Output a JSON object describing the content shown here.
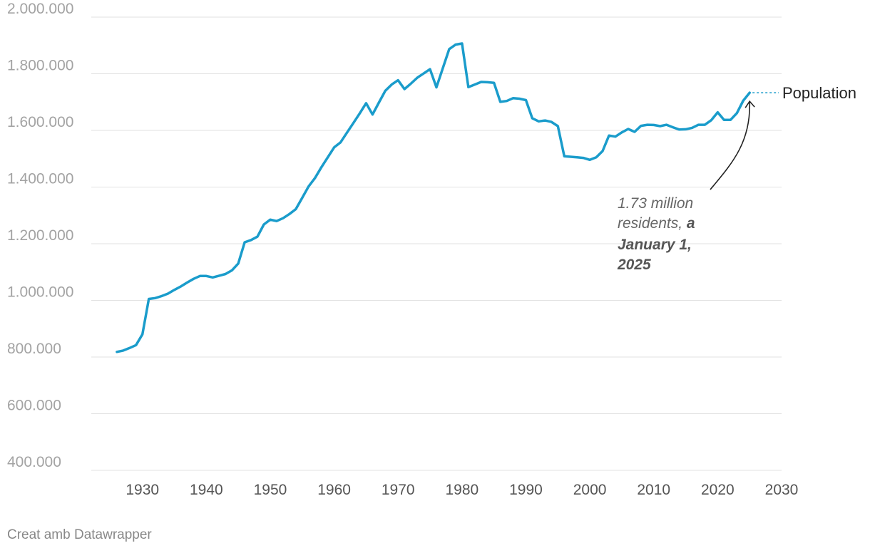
{
  "chart_data": {
    "type": "line",
    "ylim": [
      400000,
      2000000
    ],
    "xlim": [
      1922,
      2030
    ],
    "y_ticks": [
      "2.000.000",
      "1.800.000",
      "1.600.000",
      "1.400.000",
      "1.200.000",
      "1.000.000",
      "800.000",
      "600.000",
      "400.000"
    ],
    "y_tick_values": [
      2000000,
      1800000,
      1600000,
      1400000,
      1200000,
      1000000,
      800000,
      600000,
      400000
    ],
    "x_ticks": [
      "1930",
      "1940",
      "1950",
      "1960",
      "1970",
      "1980",
      "1990",
      "2000",
      "2010",
      "2020",
      "2030"
    ],
    "x_tick_values": [
      1930,
      1940,
      1950,
      1960,
      1970,
      1980,
      1990,
      2000,
      2010,
      2020,
      2030
    ],
    "grid": true,
    "line_color": "#1a9ccb",
    "series": [
      {
        "name": "Population",
        "x": [
          1926,
          1927,
          1928,
          1929,
          1930,
          1931,
          1932,
          1933,
          1934,
          1935,
          1936,
          1937,
          1938,
          1939,
          1940,
          1941,
          1942,
          1943,
          1944,
          1945,
          1946,
          1947,
          1948,
          1949,
          1950,
          1951,
          1952,
          1953,
          1954,
          1955,
          1956,
          1957,
          1958,
          1959,
          1960,
          1961,
          1962,
          1963,
          1964,
          1965,
          1966,
          1967,
          1968,
          1969,
          1970,
          1971,
          1972,
          1973,
          1974,
          1975,
          1976,
          1977,
          1978,
          1979,
          1980,
          1981,
          1982,
          1983,
          1984,
          1985,
          1986,
          1987,
          1988,
          1989,
          1990,
          1991,
          1992,
          1993,
          1994,
          1995,
          1996,
          1997,
          1998,
          1999,
          2000,
          2001,
          2002,
          2003,
          2004,
          2005,
          2006,
          2007,
          2008,
          2009,
          2010,
          2011,
          2012,
          2013,
          2014,
          2015,
          2016,
          2017,
          2018,
          2019,
          2020,
          2021,
          2022,
          2023,
          2024,
          2025
        ],
        "values": [
          818000,
          823000,
          832000,
          842000,
          880000,
          1005000,
          1008000,
          1015000,
          1024000,
          1037000,
          1049000,
          1063000,
          1076000,
          1086000,
          1086000,
          1081000,
          1087000,
          1093000,
          1106000,
          1130000,
          1205000,
          1213000,
          1225000,
          1268000,
          1285000,
          1280000,
          1290000,
          1305000,
          1322000,
          1362000,
          1402000,
          1432000,
          1470000,
          1505000,
          1540000,
          1558000,
          1592000,
          1626000,
          1660000,
          1696000,
          1656000,
          1698000,
          1740000,
          1762000,
          1777000,
          1746000,
          1765000,
          1786000,
          1801000,
          1816000,
          1752000,
          1820000,
          1887000,
          1903000,
          1907000,
          1753000,
          1762000,
          1771000,
          1770000,
          1768000,
          1701000,
          1704000,
          1714000,
          1712000,
          1707000,
          1643000,
          1632000,
          1635000,
          1630000,
          1615000,
          1509000,
          1507000,
          1505000,
          1503000,
          1496000,
          1505000,
          1527000,
          1582000,
          1578000,
          1593000,
          1605000,
          1595000,
          1616000,
          1620000,
          1619000,
          1615000,
          1620000,
          1611000,
          1603000,
          1604000,
          1609000,
          1620000,
          1620000,
          1636000,
          1664000,
          1637000,
          1637000,
          1661000,
          1705000,
          1733000
        ]
      }
    ],
    "end_label": "Population",
    "annotation": {
      "italic_text_lines": [
        "1.73 million",
        "residents, "
      ],
      "bold_text": [
        "a",
        "January 1,",
        "2025"
      ]
    }
  },
  "footer": {
    "credit": "Creat amb Datawrapper"
  }
}
